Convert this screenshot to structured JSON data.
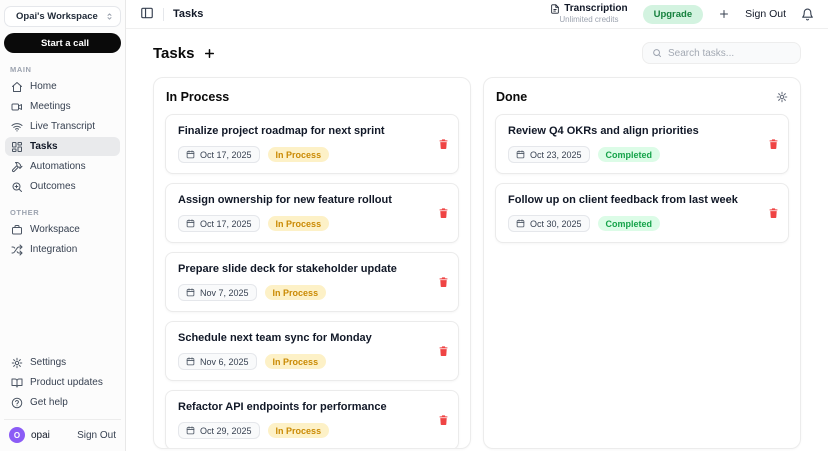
{
  "colors": {
    "upgrade_bg": "#d3f3e0",
    "upgrade_text": "#15803d",
    "badge_in_process_bg": "#fdf1c7",
    "badge_in_process_text": "#ca8a04",
    "badge_completed_bg": "#dcfce7",
    "badge_completed_text": "#16a34a",
    "danger": "#ef4444",
    "avatar_bg": "#8b5cf6"
  },
  "sidebar": {
    "workspace_name": "Opai's Workspace",
    "start_call_label": "Start a call",
    "sections": [
      {
        "label": "MAIN",
        "items": [
          {
            "label": "Home",
            "icon": "home",
            "active": false
          },
          {
            "label": "Meetings",
            "icon": "meetings",
            "active": false
          },
          {
            "label": "Live Transcript",
            "icon": "live-transcript",
            "active": false
          },
          {
            "label": "Tasks",
            "icon": "tasks",
            "active": true
          },
          {
            "label": "Automations",
            "icon": "automations",
            "active": false
          },
          {
            "label": "Outcomes",
            "icon": "outcomes",
            "active": false
          }
        ]
      },
      {
        "label": "OTHER",
        "items": [
          {
            "label": "Workspace",
            "icon": "workspace",
            "active": false
          },
          {
            "label": "Integration",
            "icon": "integration",
            "active": false
          }
        ]
      }
    ],
    "footer_items": [
      {
        "label": "Settings",
        "icon": "settings"
      },
      {
        "label": "Product updates",
        "icon": "product-updates"
      },
      {
        "label": "Get help",
        "icon": "get-help"
      }
    ],
    "user": {
      "avatar_initial": "O",
      "name": "opai",
      "sign_out_label": "Sign Out"
    }
  },
  "topbar": {
    "breadcrumb": "Tasks",
    "transcription_title": "Transcription",
    "transcription_subtitle": "Unlimited credits",
    "upgrade_label": "Upgrade",
    "sign_out_label": "Sign Out"
  },
  "main": {
    "title": "Tasks",
    "search_placeholder": "Search tasks...",
    "columns": [
      {
        "title": "In Process",
        "has_settings": false,
        "tasks": [
          {
            "title": "Finalize project roadmap for next sprint",
            "date": "Oct 17, 2025",
            "status": "In Process",
            "status_type": "in-process"
          },
          {
            "title": "Assign ownership for new feature rollout",
            "date": "Oct 17, 2025",
            "status": "In Process",
            "status_type": "in-process"
          },
          {
            "title": "Prepare slide deck for stakeholder update",
            "date": "Nov 7, 2025",
            "status": "In Process",
            "status_type": "in-process"
          },
          {
            "title": "Schedule next team sync for Monday",
            "date": "Nov 6, 2025",
            "status": "In Process",
            "status_type": "in-process"
          },
          {
            "title": "Refactor API endpoints for performance",
            "date": "Oct 29, 2025",
            "status": "In Process",
            "status_type": "in-process"
          }
        ]
      },
      {
        "title": "Done",
        "has_settings": true,
        "tasks": [
          {
            "title": "Review Q4 OKRs and align priorities",
            "date": "Oct 23, 2025",
            "status": "Completed",
            "status_type": "completed"
          },
          {
            "title": "Follow up on client feedback from last week",
            "date": "Oct 30, 2025",
            "status": "Completed",
            "status_type": "completed"
          }
        ]
      }
    ]
  }
}
